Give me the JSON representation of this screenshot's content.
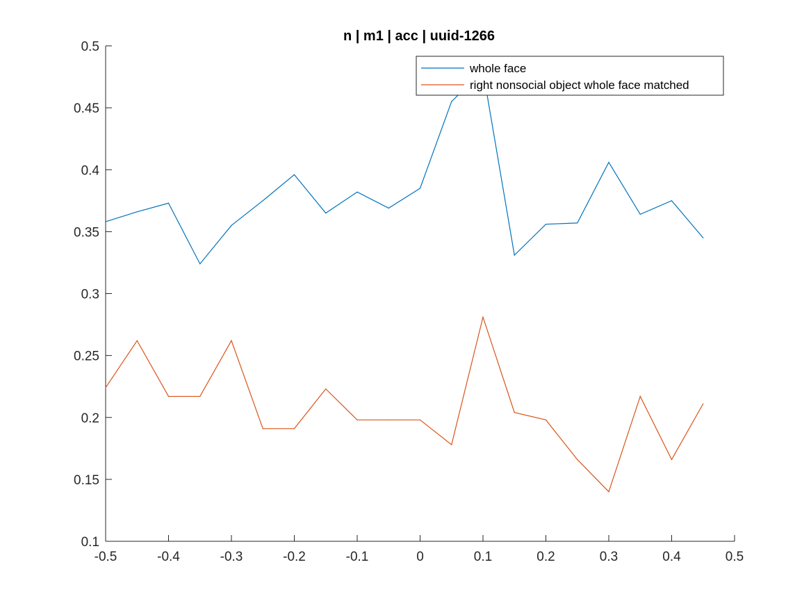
{
  "chart_data": {
    "type": "line",
    "title": "n | m1 | acc | uuid-1266",
    "xlabel": "",
    "ylabel": "",
    "xlim": [
      -0.5,
      0.5
    ],
    "ylim": [
      0.1,
      0.5
    ],
    "xticks": [
      "-0.5",
      "-0.4",
      "-0.3",
      "-0.2",
      "-0.1",
      "0",
      "0.1",
      "0.2",
      "0.3",
      "0.4",
      "0.5"
    ],
    "yticks": [
      "0.1",
      "0.15",
      "0.2",
      "0.25",
      "0.3",
      "0.35",
      "0.4",
      "0.45",
      "0.5"
    ],
    "grid": false,
    "legend_position": "top-right",
    "x": [
      -0.5,
      -0.45,
      -0.4,
      -0.35,
      -0.3,
      -0.25,
      -0.2,
      -0.15,
      -0.1,
      -0.05,
      0,
      0.05,
      0.1,
      0.15,
      0.2,
      0.25,
      0.3,
      0.35,
      0.4,
      0.45
    ],
    "series": [
      {
        "name": "whole face",
        "color": "#0072BD",
        "values": [
          0.358,
          0.366,
          0.373,
          0.324,
          0.355,
          0.375,
          0.396,
          0.365,
          0.382,
          0.369,
          0.385,
          0.455,
          0.48,
          0.331,
          0.356,
          0.357,
          0.406,
          0.364,
          0.375,
          0.345
        ]
      },
      {
        "name": "right nonsocial object whole face matched",
        "color": "#D95319",
        "values": [
          0.224,
          0.262,
          0.217,
          0.217,
          0.262,
          0.191,
          0.191,
          0.223,
          0.198,
          0.198,
          0.198,
          0.178,
          0.281,
          0.204,
          0.198,
          0.166,
          0.14,
          0.217,
          0.166,
          0.211
        ]
      }
    ]
  }
}
